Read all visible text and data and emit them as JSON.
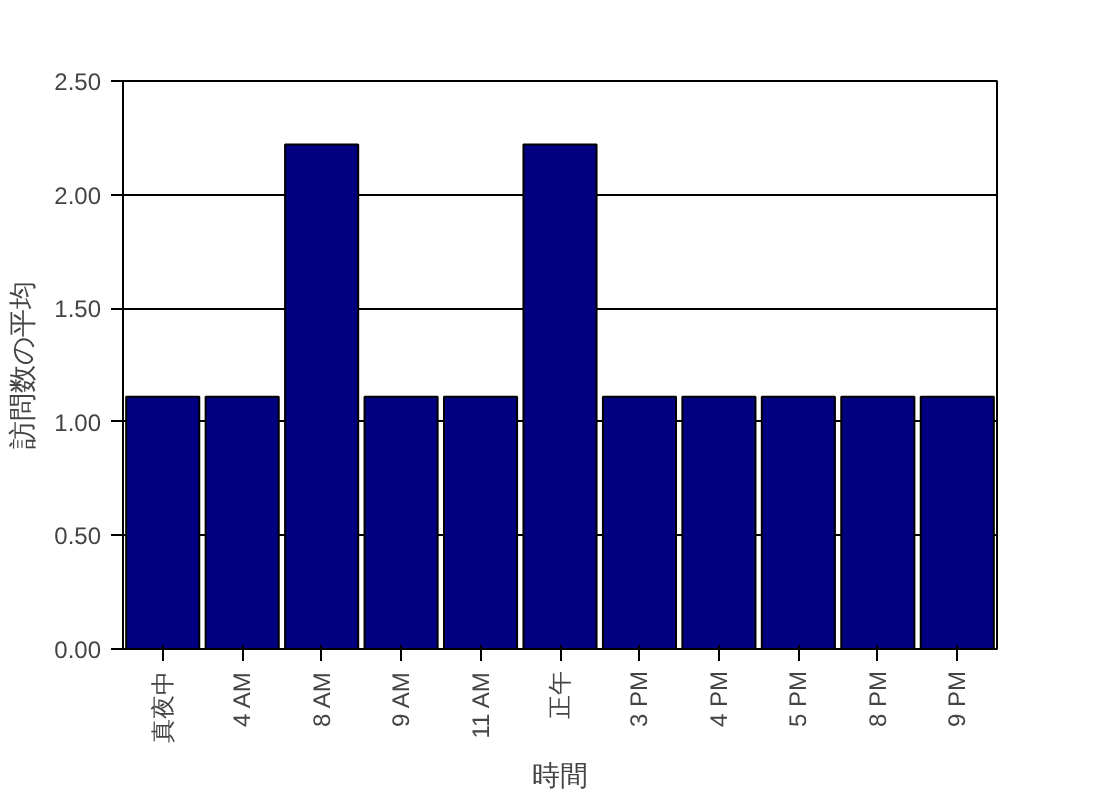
{
  "chart_data": {
    "type": "bar",
    "xlabel": "時間",
    "ylabel": "訪問数の平均",
    "categories": [
      "真夜中",
      "4 AM",
      "8 AM",
      "9 AM",
      "11 AM",
      "正午",
      "3 PM",
      "4 PM",
      "5 PM",
      "8 PM",
      "9 PM"
    ],
    "values": [
      1.11,
      1.11,
      2.22,
      1.11,
      1.11,
      2.22,
      1.11,
      1.11,
      1.11,
      1.11,
      1.11
    ],
    "color": "#000080",
    "ylim": [
      0,
      2.5
    ],
    "yticks": [
      {
        "value": 0,
        "label": "0.00"
      },
      {
        "value": 0.5,
        "label": "0.50"
      },
      {
        "value": 1,
        "label": "1.00"
      },
      {
        "value": 1.5,
        "label": "1.50"
      },
      {
        "value": 2,
        "label": "2.00"
      },
      {
        "value": 2.5,
        "label": "2.50"
      }
    ],
    "grid": "y"
  }
}
